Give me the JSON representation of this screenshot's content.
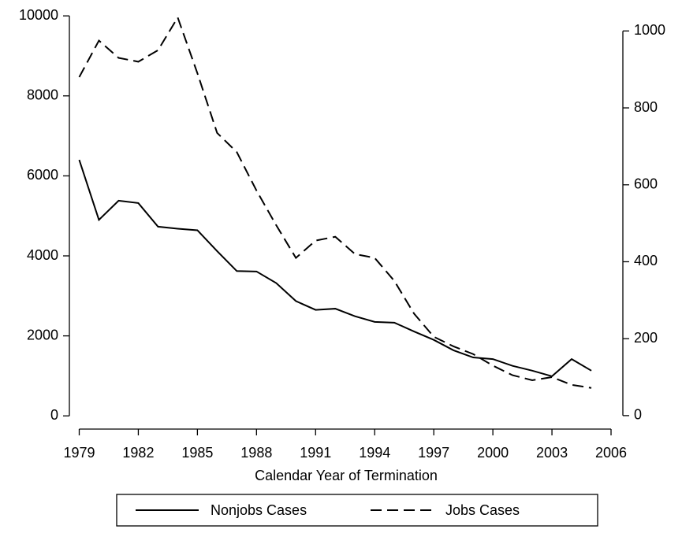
{
  "chart_data": {
    "type": "line",
    "xlabel": "Calendar Year of Termination",
    "x": [
      1979,
      1980,
      1981,
      1982,
      1983,
      1984,
      1985,
      1986,
      1987,
      1988,
      1989,
      1990,
      1991,
      1992,
      1993,
      1994,
      1995,
      1996,
      1997,
      1998,
      1999,
      2000,
      2001,
      2002,
      2003,
      2004,
      2005
    ],
    "series": [
      {
        "name": "Nonjobs Cases",
        "color": "#000000",
        "dash": "solid",
        "axis": "y",
        "values": [
          6400,
          4900,
          5380,
          5320,
          4730,
          4680,
          4640,
          4120,
          3620,
          3610,
          3320,
          2870,
          2650,
          2680,
          2490,
          2350,
          2330,
          2110,
          1900,
          1640,
          1460,
          1420,
          1250,
          1130,
          990,
          1420,
          1130
        ]
      },
      {
        "name": "Jobs Cases",
        "color": "#000000",
        "dash": "dashed",
        "axis": "y2",
        "values": [
          880,
          975,
          930,
          920,
          950,
          1035,
          890,
          735,
          685,
          585,
          495,
          410,
          455,
          465,
          420,
          410,
          350,
          265,
          205,
          180,
          160,
          130,
          105,
          92,
          100,
          80,
          72
        ]
      }
    ],
    "xlim": [
      1978.5,
      2006.6
    ],
    "xticks": [
      1979,
      1982,
      1985,
      1988,
      1991,
      1994,
      1997,
      2000,
      2003,
      2006
    ],
    "ylim": [
      -330,
      10200
    ],
    "yticks": [
      0,
      2000,
      4000,
      6000,
      8000,
      10000
    ],
    "y2lim": [
      -35,
      1060
    ],
    "y2ticks": [
      0,
      200,
      400,
      600,
      800,
      1000
    ],
    "legend": "bottom"
  }
}
